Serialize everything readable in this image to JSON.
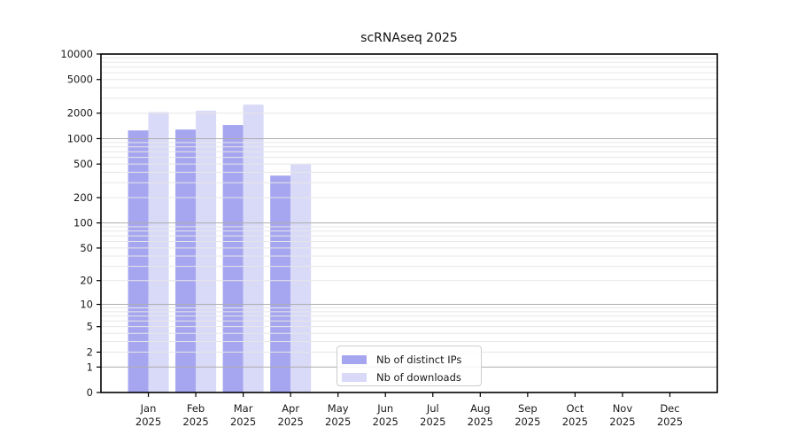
{
  "chart_data": {
    "type": "bar",
    "title": "scRNAseq 2025",
    "xlabel": "",
    "ylabel": "",
    "categories": [
      "Jan",
      "Feb",
      "Mar",
      "Apr",
      "May",
      "Jun",
      "Jul",
      "Aug",
      "Sep",
      "Oct",
      "Nov",
      "Dec"
    ],
    "year_label": "2025",
    "series": [
      {
        "name": "Nb of distinct IPs",
        "color": "#a6a6f0",
        "values": [
          1250,
          1280,
          1450,
          365,
          null,
          null,
          null,
          null,
          null,
          null,
          null,
          null
        ]
      },
      {
        "name": "Nb of downloads",
        "color": "#d9d9f8",
        "values": [
          2060,
          2140,
          2520,
          505,
          null,
          null,
          null,
          null,
          null,
          null,
          null,
          null
        ]
      }
    ],
    "yscale": "log1p",
    "ylim": [
      0,
      10000
    ],
    "yticks": [
      0,
      1,
      2,
      5,
      10,
      20,
      50,
      100,
      200,
      500,
      1000,
      2000,
      5000,
      10000
    ],
    "ytick_labels": [
      "0",
      "1",
      "2",
      "5",
      "10",
      "20",
      "50",
      "100",
      "200",
      "500",
      "1000",
      "2000",
      "5000",
      "10000"
    ],
    "grid": "horizontal major at powers of 10, light log minors",
    "legend_position": "lower center"
  },
  "colors": {
    "bar_distinct_ips": "#a6a6f0",
    "bar_downloads": "#d9d9f8",
    "grid_major": "#aeaeae",
    "grid_minor": "#e7e7e7",
    "frame": "#000000",
    "text": "#1a1a1a",
    "background": "#ffffff"
  }
}
